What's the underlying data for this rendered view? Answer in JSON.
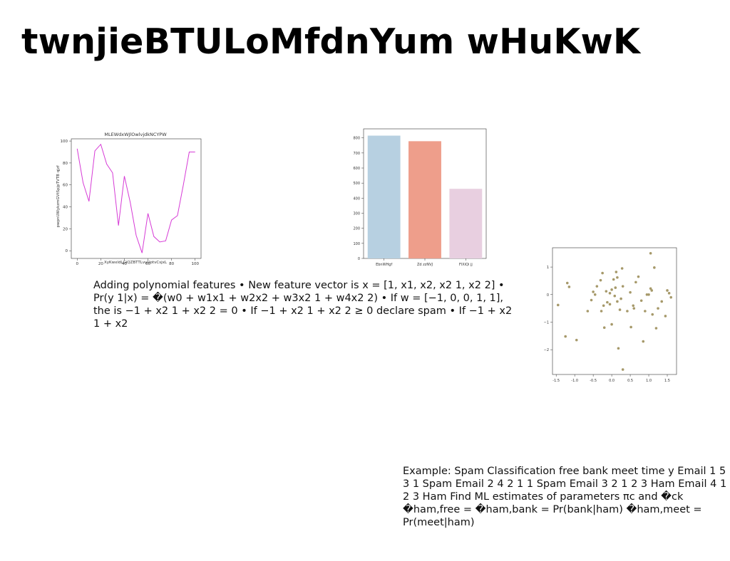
{
  "slide": {
    "title": "twnjieBTULoMfdnYum wHuKwK",
    "paragraphs": [
      "Adding polynomial features • New feature vector is x = [1, x1, x2, x2 1, x2 2] • Pr(y 1|x) = �(w0 + w1x1 + w2x2 + w3x2 1 + w4x2 2) • If w = [−1, 0, 0, 1, 1], the is −1 + x2 1 + x2 2 = 0 • If −1 + x2 1 + x2 2 ≥ 0 declare spam • If −1 + x2 1 + x2",
      "Example: Spam Classification free bank meet time y Email 1 5 3 1 Spam Email 2 4 2 1 1 Spam Email 3 2 1 2 3 Ham Email 4 1 2 3 Ham Find ML estimates of parameters πc and �ck �ham,free = �ham,bank = Pr(bank|ham) �ham,meet = Pr(meet|ham)"
    ]
  },
  "chart_data": [
    {
      "type": "line",
      "title": "MLEWdxWJlOwlvjdkNCYPW",
      "xlabel": "XyKwxldLGiQZBTTLvuUotvCsjxL",
      "ylabel": "pwpnUWykzmGVtSpjpTVTB qjzf",
      "x": [
        0,
        5,
        10,
        15,
        20,
        25,
        30,
        35,
        40,
        45,
        50,
        55,
        60,
        65,
        70,
        75,
        80,
        85,
        90,
        95,
        100
      ],
      "series": [
        {
          "values": [
            93,
            62,
            45,
            91,
            97,
            79,
            71,
            23,
            68,
            44,
            14,
            -2,
            34,
            13,
            8,
            9,
            28,
            32,
            60,
            90,
            90
          ]
        }
      ],
      "xlim": [
        -5,
        105
      ],
      "ylim": [
        -7,
        102
      ],
      "xticks": [
        0,
        20,
        40,
        60,
        80,
        100
      ],
      "yticks": [
        0,
        20,
        40,
        60,
        80,
        100
      ],
      "grid": false,
      "colors": {
        "line": "#d63bd6",
        "axis": "#333333",
        "text": "#333333"
      }
    },
    {
      "type": "bar",
      "categories": [
        "EbnWHgf",
        "Zd zzNVJ",
        "FlXiQi jj"
      ],
      "values": [
        815,
        778,
        462
      ],
      "ylim": [
        0,
        860
      ],
      "yticks": [
        0,
        100,
        200,
        300,
        400,
        500,
        600,
        700,
        800
      ],
      "grid": false,
      "colors": {
        "bars": [
          "#b7d0e1",
          "#ee9e8b",
          "#e8cfe0"
        ],
        "axis": "#333333"
      }
    },
    {
      "type": "scatter",
      "points": [
        [
          -1.45,
          -0.38
        ],
        [
          -1.25,
          -1.52
        ],
        [
          -1.2,
          0.42
        ],
        [
          -1.15,
          0.28
        ],
        [
          -0.95,
          -1.65
        ],
        [
          -0.65,
          -0.6
        ],
        [
          -0.55,
          -0.2
        ],
        [
          -0.5,
          0.1
        ],
        [
          -0.45,
          0.0
        ],
        [
          -0.4,
          0.3
        ],
        [
          -0.3,
          0.52
        ],
        [
          -0.28,
          -0.6
        ],
        [
          -0.25,
          0.78
        ],
        [
          -0.22,
          -0.4
        ],
        [
          -0.2,
          -1.2
        ],
        [
          -0.15,
          0.12
        ],
        [
          -0.12,
          -0.28
        ],
        [
          -0.05,
          0.05
        ],
        [
          -0.05,
          -0.35
        ],
        [
          0.0,
          0.18
        ],
        [
          0.0,
          -1.08
        ],
        [
          0.05,
          0.55
        ],
        [
          0.08,
          -0.05
        ],
        [
          0.1,
          0.25
        ],
        [
          0.12,
          0.82
        ],
        [
          0.15,
          0.62
        ],
        [
          0.15,
          -0.25
        ],
        [
          0.18,
          -1.95
        ],
        [
          0.22,
          -0.55
        ],
        [
          0.25,
          -0.15
        ],
        [
          0.28,
          0.95
        ],
        [
          0.3,
          0.3
        ],
        [
          0.3,
          -2.72
        ],
        [
          0.42,
          -0.6
        ],
        [
          0.5,
          0.08
        ],
        [
          0.52,
          -1.18
        ],
        [
          0.58,
          -0.4
        ],
        [
          0.6,
          -0.5
        ],
        [
          0.65,
          0.45
        ],
        [
          0.72,
          0.65
        ],
        [
          0.8,
          -0.22
        ],
        [
          0.85,
          -1.7
        ],
        [
          0.9,
          -0.6
        ],
        [
          0.95,
          0.0
        ],
        [
          1.0,
          0.0
        ],
        [
          1.05,
          0.22
        ],
        [
          1.05,
          1.5
        ],
        [
          1.08,
          0.15
        ],
        [
          1.15,
          0.98
        ],
        [
          1.2,
          -1.22
        ],
        [
          1.25,
          -0.5
        ],
        [
          1.35,
          -0.25
        ],
        [
          1.45,
          -0.78
        ],
        [
          1.5,
          0.15
        ],
        [
          1.55,
          0.05
        ],
        [
          1.6,
          -0.1
        ],
        [
          1.1,
          -0.72
        ]
      ],
      "xlim": [
        -1.6,
        1.75
      ],
      "ylim": [
        -2.9,
        1.7
      ],
      "xticks": [
        -1.5,
        -1.0,
        -0.5,
        0.0,
        0.5,
        1.0,
        1.5
      ],
      "yticks": [
        -2,
        -1,
        0,
        1
      ],
      "grid": false,
      "colors": {
        "points": "#a6996a",
        "axis": "#333333"
      }
    }
  ]
}
